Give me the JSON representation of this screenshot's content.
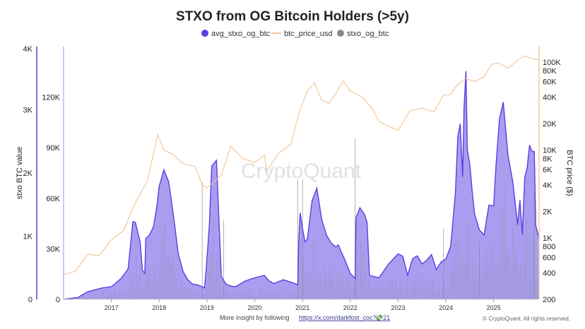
{
  "chart_data": {
    "type": "area",
    "title": "STXO from OG Bitcoin Holders (>5y)",
    "legend": [
      {
        "name": "avg_stxo_og_btc",
        "color": "#5b3fe0",
        "marker": "circle"
      },
      {
        "name": "btc_price_usd",
        "color": "#f2c8a0",
        "marker": "line"
      },
      {
        "name": "stxo_og_btc",
        "color": "#8a8a8a",
        "marker": "circle"
      }
    ],
    "ylabel_left": "stxo BTC value",
    "ylabel_right": "BTC price ($)",
    "y_left_outer_ticks": [
      "0",
      "1K",
      "2K",
      "3K",
      "4K"
    ],
    "y_left_outer_range": [
      0,
      4000
    ],
    "y_left_inner_ticks": [
      "0",
      "30K",
      "60K",
      "90K",
      "120K"
    ],
    "y_left_inner_range": [
      0,
      150000
    ],
    "y_right_ticks": [
      "200",
      "400",
      "600",
      "800",
      "1K",
      "2K",
      "4K",
      "6K",
      "8K",
      "10K",
      "20K",
      "40K",
      "60K",
      "80K",
      "100K"
    ],
    "y_right_values": [
      200,
      400,
      600,
      800,
      1000,
      2000,
      4000,
      6000,
      8000,
      10000,
      20000,
      40000,
      60000,
      80000,
      100000
    ],
    "y_right_range": [
      200,
      150000
    ],
    "y_right_scale": "log",
    "x_range": [
      2016.0,
      2025.95
    ],
    "x_ticks": [
      "2017",
      "2018",
      "2019",
      "2020",
      "2021",
      "2022",
      "2023",
      "2024",
      "2025"
    ],
    "x_tick_values": [
      2017,
      2018,
      2019,
      2020,
      2021,
      2022,
      2023,
      2024,
      2025
    ],
    "series": [
      {
        "name": "avg_stxo_og_btc",
        "x": [
          2016.0,
          2016.3,
          2016.5,
          2016.8,
          2017.0,
          2017.2,
          2017.35,
          2017.45,
          2017.5,
          2017.6,
          2017.65,
          2017.7,
          2017.72,
          2017.8,
          2017.88,
          2017.95,
          2018.0,
          2018.1,
          2018.2,
          2018.3,
          2018.4,
          2018.5,
          2018.6,
          2018.7,
          2018.8,
          2018.9,
          2018.95,
          2018.98,
          2019.05,
          2019.1,
          2019.2,
          2019.3,
          2019.35,
          2019.4,
          2019.5,
          2019.6,
          2019.8,
          2020.0,
          2020.2,
          2020.3,
          2020.4,
          2020.6,
          2020.8,
          2020.9,
          2020.92,
          2020.95,
          2021.0,
          2021.05,
          2021.1,
          2021.2,
          2021.3,
          2021.4,
          2021.5,
          2021.6,
          2021.7,
          2021.75,
          2021.8,
          2021.9,
          2022.0,
          2022.1,
          2022.12,
          2022.2,
          2022.3,
          2022.35,
          2022.4,
          2022.6,
          2022.8,
          2023.0,
          2023.1,
          2023.2,
          2023.3,
          2023.4,
          2023.5,
          2023.6,
          2023.7,
          2023.8,
          2023.9,
          2024.0,
          2024.1,
          2024.2,
          2024.25,
          2024.3,
          2024.35,
          2024.38,
          2024.42,
          2024.45,
          2024.5,
          2024.55,
          2024.6,
          2024.7,
          2024.8,
          2024.9,
          2025.0,
          2025.05,
          2025.12,
          2025.2,
          2025.3,
          2025.4,
          2025.5,
          2025.55,
          2025.6,
          2025.65,
          2025.7,
          2025.75,
          2025.8,
          2025.85,
          2025.88,
          2025.92,
          2025.95
        ],
        "values": [
          0,
          30,
          120,
          180,
          200,
          330,
          480,
          1230,
          1220,
          920,
          460,
          410,
          960,
          1020,
          1150,
          1460,
          1790,
          2050,
          1860,
          1320,
          720,
          440,
          310,
          240,
          230,
          200,
          180,
          440,
          1170,
          2110,
          2200,
          360,
          300,
          240,
          210,
          200,
          290,
          340,
          380,
          290,
          250,
          310,
          260,
          230,
          900,
          1370,
          1120,
          910,
          950,
          1560,
          1760,
          1270,
          1020,
          890,
          830,
          860,
          770,
          600,
          410,
          330,
          1290,
          1450,
          1340,
          1220,
          380,
          340,
          560,
          720,
          680,
          380,
          640,
          690,
          560,
          620,
          710,
          470,
          590,
          640,
          840,
          1690,
          2580,
          2780,
          1940,
          3030,
          3610,
          2360,
          2140,
          1720,
          1350,
          1100,
          1020,
          1490,
          1480,
          2130,
          2850,
          3120,
          2280,
          1860,
          1180,
          1570,
          1020,
          1930,
          2080,
          2440,
          2340,
          2340,
          1170,
          1050,
          960
        ]
      },
      {
        "name": "btc_price_usd",
        "x": [
          2016.0,
          2016.25,
          2016.5,
          2016.75,
          2017.0,
          2017.25,
          2017.5,
          2017.75,
          2017.9,
          2017.97,
          2018.1,
          2018.3,
          2018.5,
          2018.75,
          2018.9,
          2019.0,
          2019.3,
          2019.5,
          2019.75,
          2020.0,
          2020.2,
          2020.25,
          2020.5,
          2020.75,
          2020.95,
          2021.1,
          2021.25,
          2021.4,
          2021.55,
          2021.7,
          2021.85,
          2022.0,
          2022.25,
          2022.45,
          2022.6,
          2022.85,
          2023.0,
          2023.25,
          2023.5,
          2023.75,
          2023.95,
          2024.1,
          2024.2,
          2024.4,
          2024.6,
          2024.8,
          2024.95,
          2025.1,
          2025.3,
          2025.5,
          2025.65,
          2025.8,
          2025.95
        ],
        "values": [
          380,
          420,
          650,
          630,
          950,
          1200,
          2500,
          4400,
          10000,
          15000,
          10000,
          8800,
          7000,
          6500,
          4000,
          3700,
          5200,
          11000,
          8000,
          7200,
          8800,
          5800,
          9200,
          11500,
          29000,
          47000,
          58000,
          37000,
          34000,
          44000,
          61000,
          47000,
          40000,
          30000,
          21000,
          18000,
          16800,
          28000,
          30000,
          27000,
          42000,
          43000,
          52000,
          65000,
          60000,
          68000,
          94000,
          98000,
          85000,
          105000,
          118000,
          110000,
          105000
        ]
      }
    ],
    "watermark": "CryptoQuant",
    "footer_text": "More insight by following",
    "footer_link": "https://x.com/darkfost_coc?s=21",
    "footer_emoji": "💸",
    "copyright": "© CryptoQuant. All rights reserved."
  }
}
